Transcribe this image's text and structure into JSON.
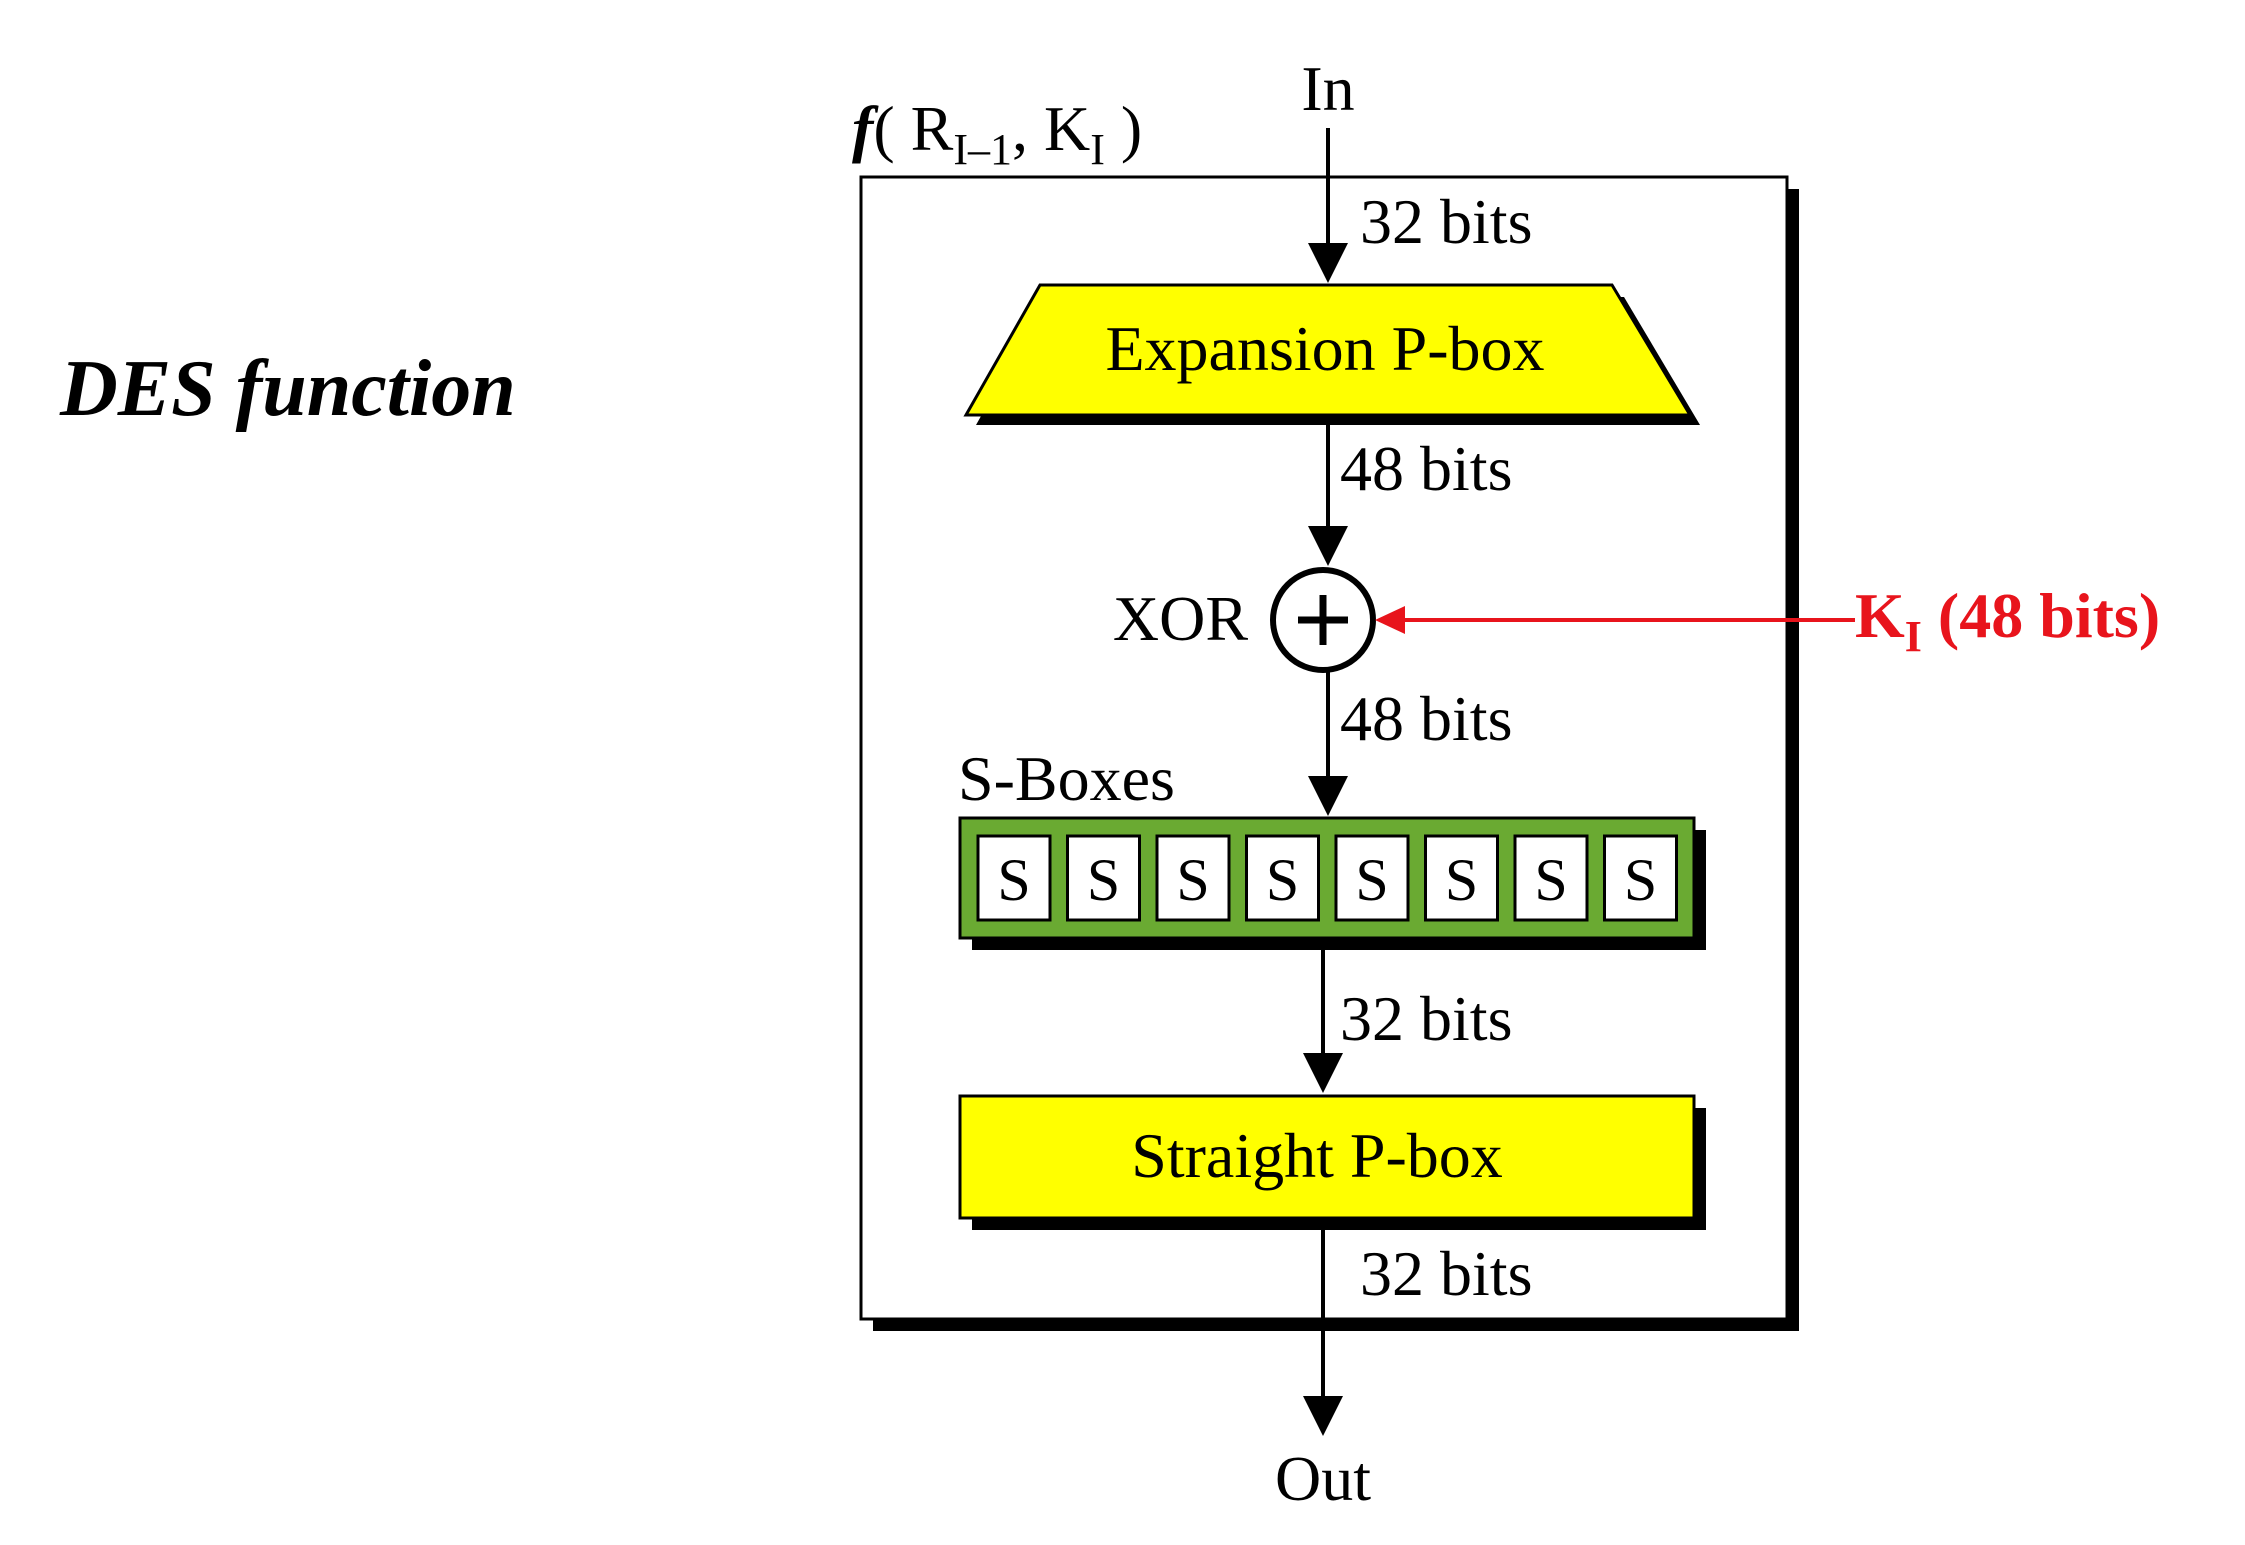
{
  "title": "DES function",
  "function_label": {
    "f": "f",
    "open": "( R",
    "r_sub": "I–1",
    "mid": ", K",
    "k_sub": "I",
    "close": " )"
  },
  "input_label": "In",
  "output_label": "Out",
  "edges": {
    "in_bits": "32 bits",
    "expansion_out_bits": "48 bits",
    "xor_out_bits": "48 bits",
    "sbox_out_bits": "32 bits",
    "straight_out_bits": "32 bits"
  },
  "expansion_pbox_label": "Expansion P-box",
  "xor_label": "XOR",
  "xor_symbol": "+",
  "key_input": {
    "k": "K",
    "sub": "I",
    "suffix": " (48 bits)"
  },
  "sboxes": {
    "group_label": "S-Boxes",
    "items": [
      "S",
      "S",
      "S",
      "S",
      "S",
      "S",
      "S",
      "S"
    ]
  },
  "straight_pbox_label": "Straight P-box",
  "colors": {
    "pbox_fill": "#ffff00",
    "sbox_group_fill": "#6aaa32",
    "key_arrow": "#e8141c",
    "shadow": "#000000"
  }
}
